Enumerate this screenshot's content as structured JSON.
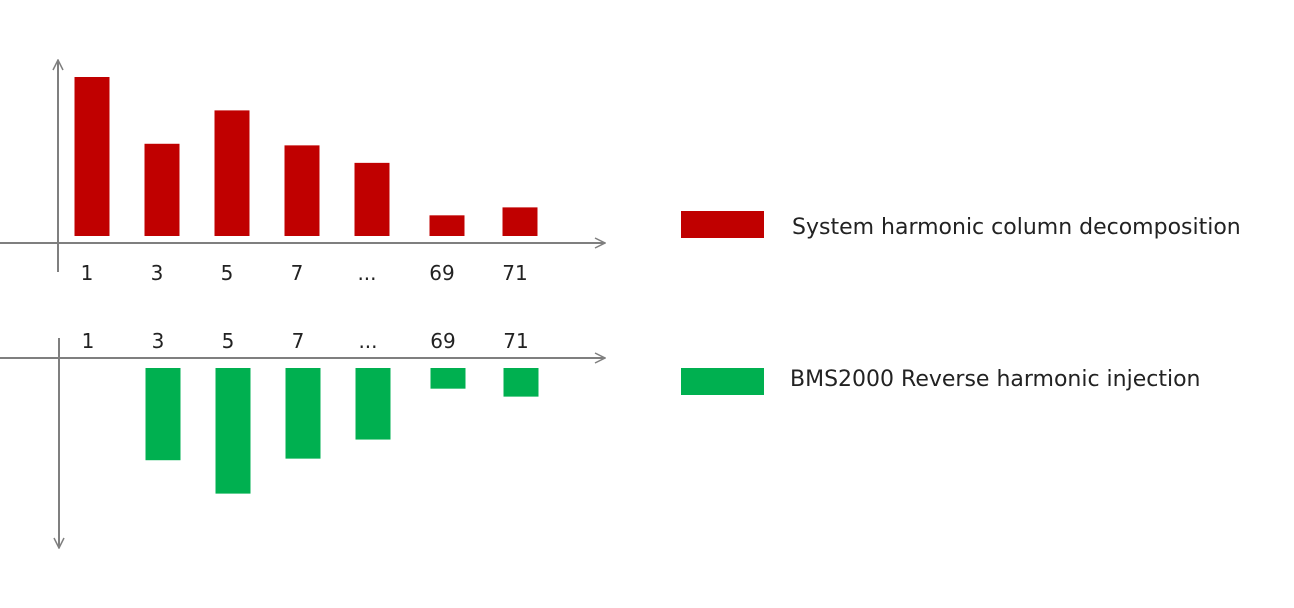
{
  "chart_data": [
    {
      "type": "bar",
      "categories": [
        "1",
        "3",
        "5",
        "7",
        "...",
        "69",
        "71"
      ],
      "series": [
        {
          "name": "System harmonic column decomposition",
          "values": [
            100,
            58,
            79,
            57,
            46,
            13,
            18
          ],
          "color": "#c00000"
        }
      ],
      "ylim": [
        0,
        115
      ],
      "grid": false,
      "legend": "right",
      "xlabel": "",
      "ylabel": ""
    },
    {
      "type": "bar",
      "categories": [
        "1",
        "3",
        "5",
        "7",
        "...",
        "69",
        "71"
      ],
      "series": [
        {
          "name": "BMS2000 Reverse harmonic injection",
          "values": [
            0,
            -58,
            -79,
            -57,
            -45,
            -13,
            -18
          ],
          "color": "#00b050"
        }
      ],
      "ylim": [
        -115,
        0
      ],
      "grid": false,
      "legend": "right",
      "xlabel": "",
      "ylabel": ""
    }
  ],
  "colors": {
    "axis": "#7f7f7f",
    "system": "#c00000",
    "injection": "#00b050"
  }
}
